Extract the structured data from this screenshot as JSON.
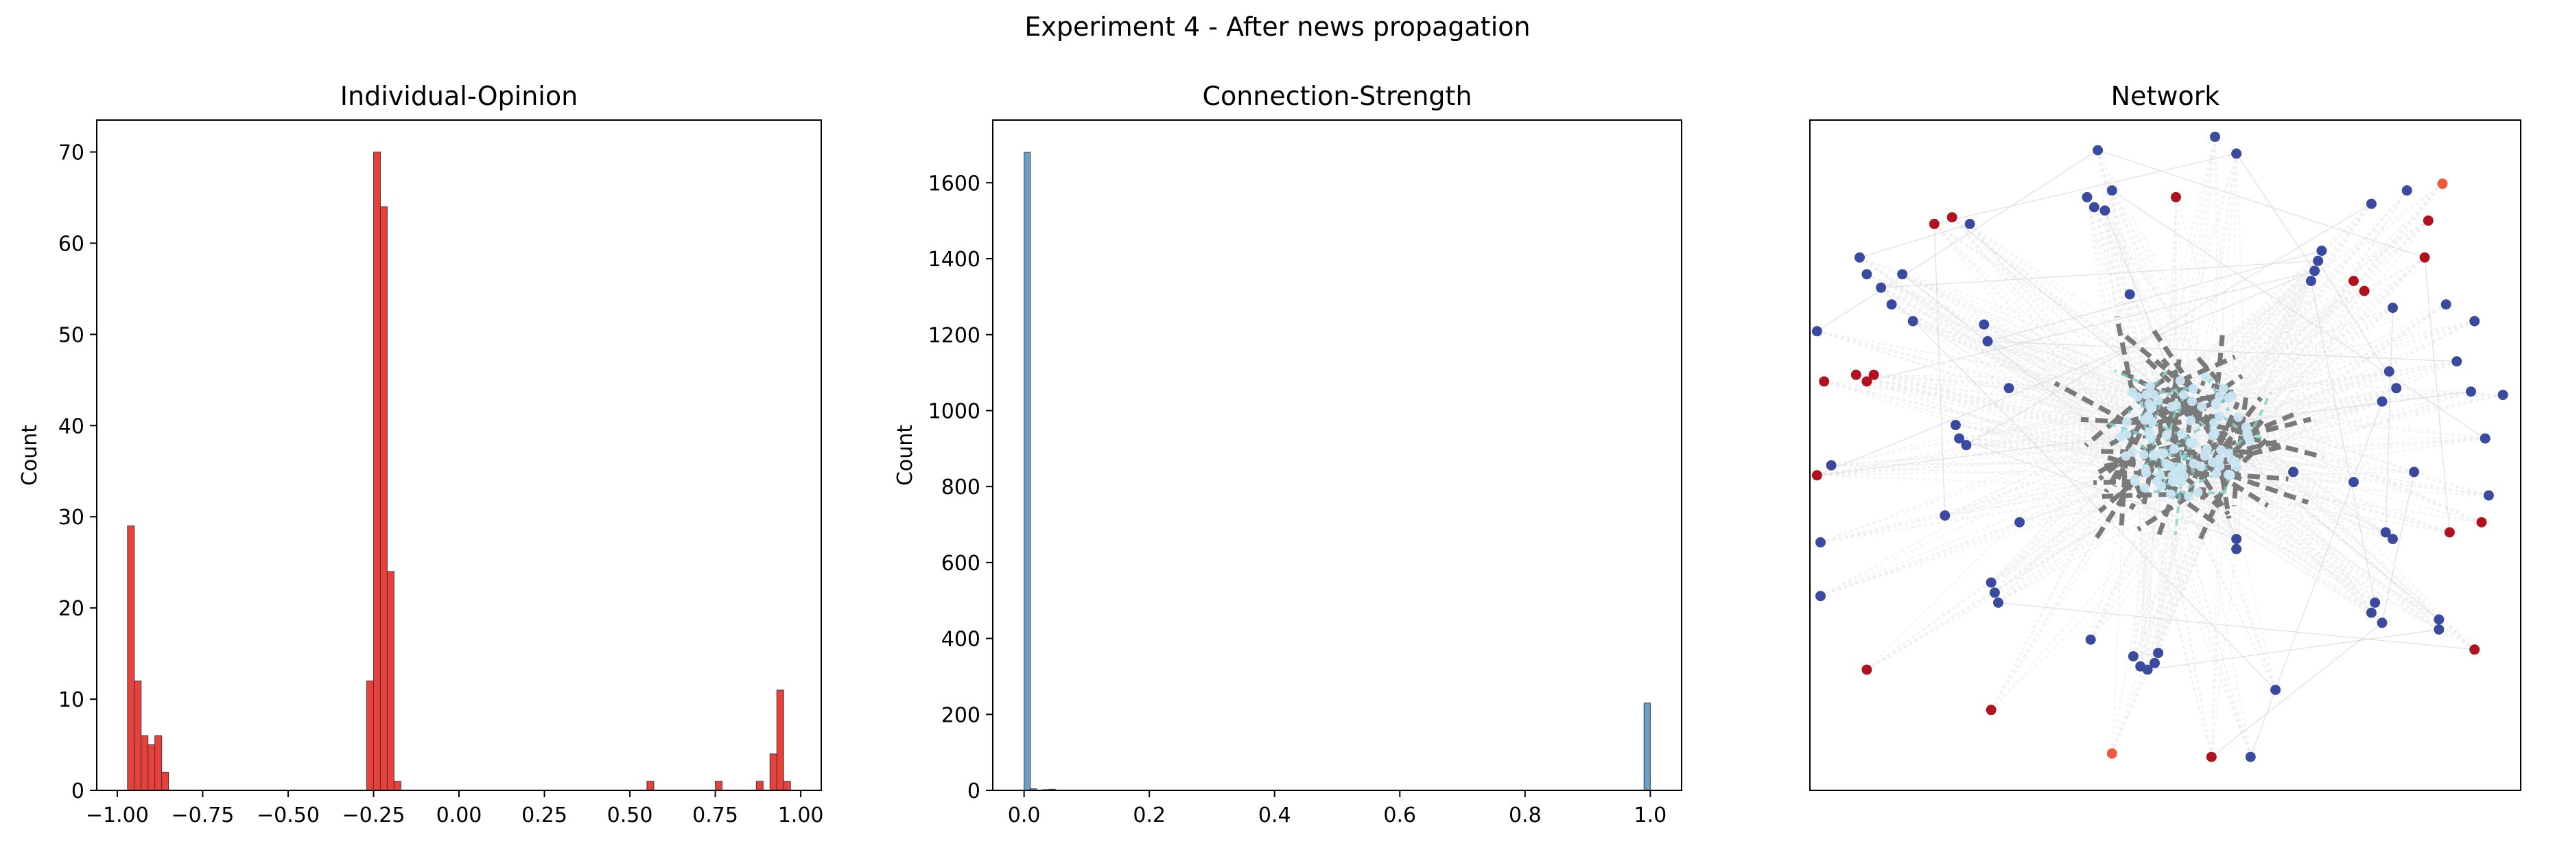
{
  "figure": {
    "suptitle": "Experiment 4 - After news propagation"
  },
  "chart_data": [
    {
      "type": "bar",
      "title": "Individual-Opinion",
      "xlabel": "",
      "ylabel": "Count",
      "xlim": [
        -1.06,
        1.06
      ],
      "ylim": [
        0,
        73.5
      ],
      "xticks": [
        -1.0,
        -0.75,
        -0.5,
        -0.25,
        0.0,
        0.25,
        0.5,
        0.75,
        1.0
      ],
      "xtick_labels": [
        "−1.00",
        "−0.75",
        "−0.50",
        "−0.25",
        "0.00",
        "0.25",
        "0.50",
        "0.75",
        "1.00"
      ],
      "yticks": [
        0,
        10,
        20,
        30,
        40,
        50,
        60,
        70
      ],
      "ytick_labels": [
        "0",
        "10",
        "20",
        "30",
        "40",
        "50",
        "60",
        "70"
      ],
      "bin_width": 0.02,
      "color": "#e8302b",
      "bins": [
        {
          "x0": -0.97,
          "count": 29
        },
        {
          "x0": -0.95,
          "count": 12
        },
        {
          "x0": -0.93,
          "count": 6
        },
        {
          "x0": -0.91,
          "count": 5
        },
        {
          "x0": -0.89,
          "count": 6
        },
        {
          "x0": -0.87,
          "count": 2
        },
        {
          "x0": -0.27,
          "count": 12
        },
        {
          "x0": -0.25,
          "count": 70
        },
        {
          "x0": -0.23,
          "count": 64
        },
        {
          "x0": -0.21,
          "count": 24
        },
        {
          "x0": -0.19,
          "count": 1
        },
        {
          "x0": 0.55,
          "count": 1
        },
        {
          "x0": 0.75,
          "count": 1
        },
        {
          "x0": 0.87,
          "count": 1
        },
        {
          "x0": 0.91,
          "count": 4
        },
        {
          "x0": 0.93,
          "count": 11
        },
        {
          "x0": 0.95,
          "count": 1
        }
      ]
    },
    {
      "type": "bar",
      "title": "Connection-Strength",
      "xlabel": "",
      "ylabel": "Count",
      "xlim": [
        -0.05,
        1.05
      ],
      "ylim": [
        0,
        1765
      ],
      "xticks": [
        0.0,
        0.2,
        0.4,
        0.6,
        0.8,
        1.0
      ],
      "xtick_labels": [
        "0.0",
        "0.2",
        "0.4",
        "0.6",
        "0.8",
        "1.0"
      ],
      "yticks": [
        0,
        200,
        400,
        600,
        800,
        1000,
        1200,
        1400,
        1600
      ],
      "ytick_labels": [
        "0",
        "200",
        "400",
        "600",
        "800",
        "1000",
        "1200",
        "1400",
        "1600"
      ],
      "bin_width": 0.01,
      "color": "#5c97c4",
      "bins": [
        {
          "x0": 0.0,
          "count": 1680
        },
        {
          "x0": 0.01,
          "count": 4
        },
        {
          "x0": 0.03,
          "count": 2
        },
        {
          "x0": 0.04,
          "count": 3
        },
        {
          "x0": 0.99,
          "count": 230
        }
      ]
    },
    {
      "type": "scatter",
      "title": "Network",
      "xlim": [
        0,
        100
      ],
      "ylim": [
        0,
        100
      ],
      "axes_ticks": false,
      "node_colors": {
        "blue": "#3a4a9e",
        "red": "#b0121f",
        "orange": "#f05a3c",
        "lightblue": "#c9e6f2"
      },
      "edge_colors": {
        "strong": "#7a7a7a",
        "weak": "#eeeeee"
      },
      "outer_nodes": [
        {
          "x": 40.5,
          "y": 95.5,
          "c": "blue"
        },
        {
          "x": 57.0,
          "y": 97.5,
          "c": "blue"
        },
        {
          "x": 60.0,
          "y": 95.0,
          "c": "blue"
        },
        {
          "x": 51.5,
          "y": 88.5,
          "c": "red"
        },
        {
          "x": 40.0,
          "y": 87.0,
          "c": "blue"
        },
        {
          "x": 42.5,
          "y": 89.5,
          "c": "blue"
        },
        {
          "x": 39.0,
          "y": 88.5,
          "c": "blue"
        },
        {
          "x": 41.5,
          "y": 86.5,
          "c": "blue"
        },
        {
          "x": 87.0,
          "y": 85.0,
          "c": "red"
        },
        {
          "x": 79.0,
          "y": 87.5,
          "c": "blue"
        },
        {
          "x": 84.0,
          "y": 89.5,
          "c": "blue"
        },
        {
          "x": 72.0,
          "y": 80.5,
          "c": "blue"
        },
        {
          "x": 71.5,
          "y": 79.0,
          "c": "blue"
        },
        {
          "x": 71.0,
          "y": 77.5,
          "c": "blue"
        },
        {
          "x": 70.5,
          "y": 76.0,
          "c": "blue"
        },
        {
          "x": 76.5,
          "y": 76.0,
          "c": "red"
        },
        {
          "x": 78.0,
          "y": 74.5,
          "c": "red"
        },
        {
          "x": 86.5,
          "y": 79.5,
          "c": "red"
        },
        {
          "x": 89.5,
          "y": 72.5,
          "c": "blue"
        },
        {
          "x": 91.0,
          "y": 64.0,
          "c": "blue"
        },
        {
          "x": 97.5,
          "y": 59.0,
          "c": "blue"
        },
        {
          "x": 95.0,
          "y": 52.5,
          "c": "blue"
        },
        {
          "x": 81.5,
          "y": 62.5,
          "c": "blue"
        },
        {
          "x": 82.5,
          "y": 60.0,
          "c": "blue"
        },
        {
          "x": 80.5,
          "y": 58.0,
          "c": "blue"
        },
        {
          "x": 76.5,
          "y": 46.0,
          "c": "blue"
        },
        {
          "x": 85.0,
          "y": 47.5,
          "c": "blue"
        },
        {
          "x": 94.5,
          "y": 40.0,
          "c": "red"
        },
        {
          "x": 90.0,
          "y": 38.5,
          "c": "red"
        },
        {
          "x": 81.0,
          "y": 38.5,
          "c": "blue"
        },
        {
          "x": 82.0,
          "y": 37.5,
          "c": "blue"
        },
        {
          "x": 79.5,
          "y": 28.0,
          "c": "blue"
        },
        {
          "x": 79.0,
          "y": 26.5,
          "c": "blue"
        },
        {
          "x": 80.5,
          "y": 25.0,
          "c": "blue"
        },
        {
          "x": 88.5,
          "y": 24.0,
          "c": "blue"
        },
        {
          "x": 93.5,
          "y": 21.0,
          "c": "red"
        },
        {
          "x": 65.5,
          "y": 15.0,
          "c": "blue"
        },
        {
          "x": 62.0,
          "y": 5.0,
          "c": "blue"
        },
        {
          "x": 56.5,
          "y": 5.0,
          "c": "red"
        },
        {
          "x": 42.5,
          "y": 5.5,
          "c": "orange"
        },
        {
          "x": 25.5,
          "y": 12.0,
          "c": "red"
        },
        {
          "x": 8.0,
          "y": 18.0,
          "c": "red"
        },
        {
          "x": 1.5,
          "y": 29.0,
          "c": "blue"
        },
        {
          "x": 1.5,
          "y": 37.0,
          "c": "blue"
        },
        {
          "x": 1.0,
          "y": 47.0,
          "c": "red"
        },
        {
          "x": 2.0,
          "y": 61.0,
          "c": "red"
        },
        {
          "x": 1.0,
          "y": 68.5,
          "c": "blue"
        },
        {
          "x": 6.5,
          "y": 62.0,
          "c": "red"
        },
        {
          "x": 8.0,
          "y": 61.0,
          "c": "red"
        },
        {
          "x": 9.0,
          "y": 62.0,
          "c": "red"
        },
        {
          "x": 13.0,
          "y": 77.0,
          "c": "blue"
        },
        {
          "x": 14.5,
          "y": 70.0,
          "c": "blue"
        },
        {
          "x": 11.5,
          "y": 72.5,
          "c": "blue"
        },
        {
          "x": 24.5,
          "y": 69.5,
          "c": "blue"
        },
        {
          "x": 25.0,
          "y": 67.0,
          "c": "blue"
        },
        {
          "x": 7.0,
          "y": 79.5,
          "c": "blue"
        },
        {
          "x": 8.0,
          "y": 77.0,
          "c": "blue"
        },
        {
          "x": 17.5,
          "y": 84.5,
          "c": "red"
        },
        {
          "x": 20.0,
          "y": 85.5,
          "c": "red"
        },
        {
          "x": 22.5,
          "y": 84.5,
          "c": "blue"
        },
        {
          "x": 10.0,
          "y": 75.0,
          "c": "blue"
        },
        {
          "x": 20.5,
          "y": 54.5,
          "c": "blue"
        },
        {
          "x": 21.0,
          "y": 52.5,
          "c": "blue"
        },
        {
          "x": 22.0,
          "y": 51.5,
          "c": "blue"
        },
        {
          "x": 19.0,
          "y": 41.0,
          "c": "blue"
        },
        {
          "x": 29.5,
          "y": 40.0,
          "c": "blue"
        },
        {
          "x": 25.5,
          "y": 31.0,
          "c": "blue"
        },
        {
          "x": 26.0,
          "y": 29.5,
          "c": "blue"
        },
        {
          "x": 26.5,
          "y": 28.0,
          "c": "blue"
        },
        {
          "x": 39.5,
          "y": 22.5,
          "c": "blue"
        },
        {
          "x": 45.5,
          "y": 20.0,
          "c": "blue"
        },
        {
          "x": 46.5,
          "y": 18.5,
          "c": "blue"
        },
        {
          "x": 47.5,
          "y": 18.0,
          "c": "blue"
        },
        {
          "x": 48.5,
          "y": 19.0,
          "c": "blue"
        },
        {
          "x": 49.0,
          "y": 20.5,
          "c": "blue"
        },
        {
          "x": 45.0,
          "y": 74.0,
          "c": "blue"
        },
        {
          "x": 68.0,
          "y": 47.5,
          "c": "blue"
        },
        {
          "x": 28.0,
          "y": 60.0,
          "c": "blue"
        },
        {
          "x": 95.5,
          "y": 44.0,
          "c": "blue"
        },
        {
          "x": 88.5,
          "y": 25.5,
          "c": "blue"
        },
        {
          "x": 93.5,
          "y": 70.0,
          "c": "blue"
        },
        {
          "x": 60.0,
          "y": 37.5,
          "c": "blue"
        },
        {
          "x": 60.0,
          "y": 36.0,
          "c": "blue"
        },
        {
          "x": 82.0,
          "y": 72.0,
          "c": "blue"
        },
        {
          "x": 93.0,
          "y": 59.5,
          "c": "blue"
        },
        {
          "x": 3.0,
          "y": 48.5,
          "c": "blue"
        },
        {
          "x": 89.0,
          "y": 90.5,
          "c": "orange"
        }
      ]
    }
  ]
}
